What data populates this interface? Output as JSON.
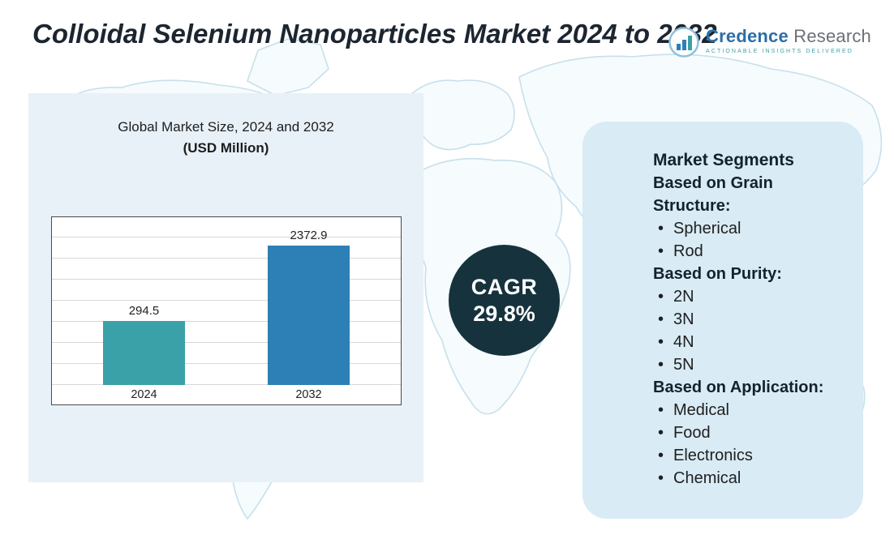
{
  "page": {
    "title": "Colloidal Selenium Nanoparticles Market 2024 to 2032"
  },
  "logo": {
    "brand_primary": "Credence",
    "brand_secondary": "Research",
    "tagline": "Actionable Insights Delivered"
  },
  "chart_data": {
    "type": "bar",
    "title": "Global Market Size, 2024 and 2032",
    "subtitle": "(USD Million)",
    "categories": [
      "2024",
      "2032"
    ],
    "values": [
      294.5,
      2372.9
    ],
    "value_labels": [
      "294.5",
      "2372.9"
    ],
    "bar_colors": [
      "#3ba1a8",
      "#2d80b5"
    ],
    "display_heights_pct": [
      38,
      83
    ],
    "ylim": [
      0,
      2500
    ],
    "grid": true,
    "legend": false,
    "note": "bar heights in source graphic are not drawn to numeric scale"
  },
  "cagr_badge": {
    "label": "CAGR",
    "value": "29.8%",
    "bg_color": "#16333d"
  },
  "segments_panel": {
    "title": "Market Segments",
    "groups": [
      {
        "heading": "Based on Grain Structure:",
        "items": [
          "Spherical",
          "Rod"
        ]
      },
      {
        "heading": "Based on Purity:",
        "items": [
          "2N",
          "3N",
          "4N",
          "5N"
        ]
      },
      {
        "heading": "Based on Application:",
        "items": [
          "Medical",
          "Food",
          "Electronics",
          "Chemical"
        ]
      }
    ]
  },
  "colors": {
    "accent_teal": "#3ba1a8",
    "accent_blue": "#2d80b5",
    "left_panel_bg": "#e8f1f8",
    "right_panel_bg": "#d9ebf4",
    "map_line": "#c7e0ec",
    "title_text": "#1c2530",
    "cagr_circle_bg": "#16333d"
  }
}
